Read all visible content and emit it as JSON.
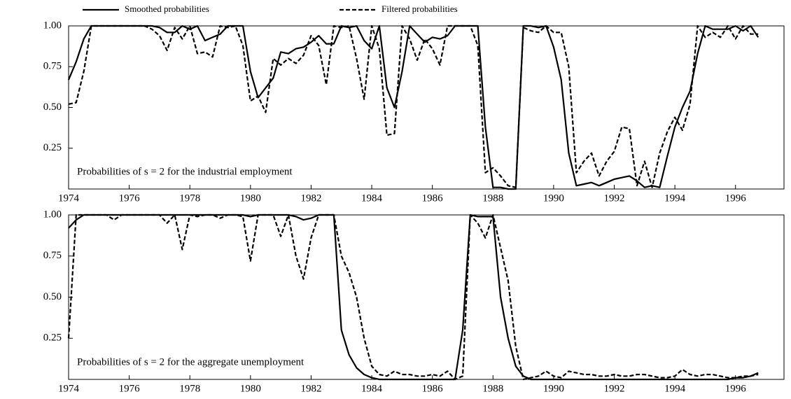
{
  "chart_data": [
    {
      "type": "line",
      "annotation": "Probabilities of s = 2 for the industrial employment",
      "x": [
        1974,
        1974.25,
        1974.5,
        1974.75,
        1975,
        1975.25,
        1975.5,
        1975.75,
        1976,
        1976.25,
        1976.5,
        1976.75,
        1977,
        1977.25,
        1977.5,
        1977.75,
        1978,
        1978.25,
        1978.5,
        1978.75,
        1979,
        1979.25,
        1979.5,
        1979.75,
        1980,
        1980.25,
        1980.5,
        1980.75,
        1981,
        1981.25,
        1981.5,
        1981.75,
        1982,
        1982.25,
        1982.5,
        1982.75,
        1983,
        1983.25,
        1983.5,
        1983.75,
        1984,
        1984.25,
        1984.5,
        1984.75,
        1985,
        1985.25,
        1985.5,
        1985.75,
        1986,
        1986.25,
        1986.5,
        1986.75,
        1987,
        1987.25,
        1987.5,
        1987.75,
        1988,
        1988.25,
        1988.5,
        1988.75,
        1989,
        1989.25,
        1989.5,
        1989.75,
        1990,
        1990.25,
        1990.5,
        1990.75,
        1991,
        1991.25,
        1991.5,
        1991.75,
        1992,
        1992.25,
        1992.5,
        1992.75,
        1993,
        1993.25,
        1993.5,
        1993.75,
        1994,
        1994.25,
        1994.5,
        1994.75,
        1995,
        1995.25,
        1995.5,
        1995.75,
        1996,
        1996.25,
        1996.5,
        1996.75
      ],
      "series": [
        {
          "name": "Smoothed probabilities",
          "color": "#000000",
          "dash": "solid",
          "values": [
            0.67,
            0.78,
            0.92,
            1.0,
            1,
            1,
            1,
            1,
            1,
            1,
            1,
            1,
            0.99,
            0.96,
            0.96,
            1.0,
            0.98,
            1.0,
            0.91,
            0.93,
            0.95,
            1.0,
            1.0,
            1.0,
            0.72,
            0.56,
            0.62,
            0.68,
            0.84,
            0.83,
            0.86,
            0.87,
            0.9,
            0.94,
            0.89,
            0.89,
            1.0,
            0.99,
            1.0,
            0.91,
            0.86,
            1.0,
            0.62,
            0.5,
            0.72,
            1.0,
            0.95,
            0.9,
            0.93,
            0.92,
            0.94,
            1.0,
            1.0,
            1.0,
            1.0,
            0.38,
            0.01,
            0.01,
            0.0,
            0.0,
            1.0,
            1.0,
            0.99,
            1.0,
            0.87,
            0.67,
            0.22,
            0.02,
            0.03,
            0.04,
            0.02,
            0.04,
            0.06,
            0.07,
            0.08,
            0.05,
            0.01,
            0.02,
            0.01,
            0.2,
            0.38,
            0.5,
            0.6,
            0.83,
            1.0,
            0.98,
            0.98,
            0.98,
            1.0,
            0.97,
            1.0,
            0.93
          ]
        },
        {
          "name": "Filtered probabilities",
          "color": "#000000",
          "dash": "dashed",
          "values": [
            0.52,
            0.53,
            0.72,
            1.0,
            1,
            1,
            1,
            1,
            1,
            1,
            1,
            0.98,
            0.94,
            0.85,
            0.99,
            0.92,
            1.0,
            0.83,
            0.84,
            0.81,
            1.0,
            0.99,
            1.0,
            0.88,
            0.54,
            0.57,
            0.47,
            0.8,
            0.76,
            0.8,
            0.77,
            0.82,
            0.94,
            0.88,
            0.64,
            1.0,
            0.99,
            1.0,
            0.8,
            0.55,
            1.0,
            0.86,
            0.33,
            0.34,
            1.0,
            0.92,
            0.79,
            0.92,
            0.86,
            0.76,
            1.0,
            1.0,
            1.0,
            1.0,
            0.88,
            0.1,
            0.13,
            0.08,
            0.02,
            0.01,
            0.99,
            0.97,
            0.96,
            1.0,
            0.96,
            0.96,
            0.75,
            0.1,
            0.17,
            0.22,
            0.08,
            0.17,
            0.23,
            0.38,
            0.37,
            0.02,
            0.17,
            0.01,
            0.22,
            0.35,
            0.44,
            0.36,
            0.52,
            1.0,
            0.93,
            0.96,
            0.93,
            1.0,
            0.92,
            1.0,
            0.95,
            0.95
          ]
        }
      ],
      "xlim": [
        1974,
        1997.6
      ],
      "ylim": [
        0,
        1
      ],
      "xticks": [
        1974,
        1976,
        1978,
        1980,
        1982,
        1984,
        1986,
        1988,
        1990,
        1992,
        1994,
        1996
      ],
      "yticks": [
        {
          "value": 0.25,
          "label": "0.25"
        },
        {
          "value": 0.5,
          "label": "0.50"
        },
        {
          "value": 0.75,
          "label": "0.75"
        },
        {
          "value": 1,
          "label": "1.00"
        }
      ]
    },
    {
      "type": "line",
      "annotation": "Probabilities of s = 2 for the aggregate unemployment",
      "x": [
        1974,
        1974.25,
        1974.5,
        1974.75,
        1975,
        1975.25,
        1975.5,
        1975.75,
        1976,
        1976.25,
        1976.5,
        1976.75,
        1977,
        1977.25,
        1977.5,
        1977.75,
        1978,
        1978.25,
        1978.5,
        1978.75,
        1979,
        1979.25,
        1979.5,
        1979.75,
        1980,
        1980.25,
        1980.5,
        1980.75,
        1981,
        1981.25,
        1981.5,
        1981.75,
        1982,
        1982.25,
        1982.5,
        1982.75,
        1983,
        1983.25,
        1983.5,
        1983.75,
        1984,
        1984.25,
        1984.5,
        1984.75,
        1985,
        1985.25,
        1985.5,
        1985.75,
        1986,
        1986.25,
        1986.5,
        1986.75,
        1987,
        1987.25,
        1987.5,
        1987.75,
        1988,
        1988.25,
        1988.5,
        1988.75,
        1989,
        1989.25,
        1989.5,
        1989.75,
        1990,
        1990.25,
        1990.5,
        1990.75,
        1991,
        1991.25,
        1991.5,
        1991.75,
        1992,
        1992.25,
        1992.5,
        1992.75,
        1993,
        1993.25,
        1993.5,
        1993.75,
        1994,
        1994.25,
        1994.5,
        1994.75,
        1995,
        1995.25,
        1995.5,
        1995.75,
        1996,
        1996.25,
        1996.5,
        1996.75
      ],
      "series": [
        {
          "color": "#000000",
          "dash": "solid",
          "values": [
            0.92,
            0.97,
            1.0,
            1.0,
            1,
            1,
            1,
            1,
            1,
            1,
            1,
            1,
            1,
            1,
            1,
            1,
            1,
            1,
            1,
            1,
            1,
            1,
            1,
            1,
            0.99,
            1.0,
            1.0,
            1.0,
            1.0,
            1.0,
            0.99,
            0.97,
            0.98,
            1.0,
            1.0,
            1.0,
            0.3,
            0.15,
            0.07,
            0.03,
            0.01,
            0,
            0,
            0,
            0,
            0,
            0,
            0,
            0,
            0,
            0,
            0,
            0.3,
            1.0,
            0.99,
            0.99,
            0.99,
            0.5,
            0.25,
            0.08,
            0.02,
            0,
            0,
            0,
            0,
            0,
            0,
            0,
            0,
            0,
            0,
            0,
            0,
            0,
            0,
            0,
            0,
            0,
            0,
            0,
            0,
            0,
            0,
            0,
            0,
            0,
            0,
            0,
            0.01,
            0.01,
            0.02,
            0.04
          ]
        },
        {
          "color": "#000000",
          "dash": "dashed",
          "values": [
            0.25,
            1.0,
            1.0,
            1.0,
            1.0,
            1.0,
            0.97,
            1.0,
            1,
            1,
            1,
            1,
            1.0,
            0.95,
            1.0,
            0.79,
            1.0,
            0.99,
            1.0,
            1.0,
            0.98,
            1.0,
            1.0,
            0.99,
            0.72,
            1.0,
            1.0,
            1.0,
            0.87,
            1.0,
            0.75,
            0.61,
            0.86,
            1.0,
            1.0,
            1.0,
            0.75,
            0.65,
            0.5,
            0.25,
            0.08,
            0.03,
            0.02,
            0.05,
            0.03,
            0.03,
            0.02,
            0.02,
            0.03,
            0.02,
            0.05,
            0.0,
            0.02,
            1.0,
            0.95,
            0.86,
            1.0,
            0.8,
            0.6,
            0.2,
            0.0,
            0.01,
            0.02,
            0.05,
            0.02,
            0.01,
            0.05,
            0.04,
            0.03,
            0.03,
            0.02,
            0.02,
            0.03,
            0.02,
            0.02,
            0.03,
            0.03,
            0.02,
            0.01,
            0.01,
            0.02,
            0.06,
            0.03,
            0.02,
            0.03,
            0.03,
            0.02,
            0.01,
            0.01,
            0.02,
            0.02,
            0.03
          ]
        }
      ],
      "xlim": [
        1974,
        1997.6
      ],
      "ylim": [
        0,
        1
      ],
      "xticks": [
        1974,
        1976,
        1978,
        1980,
        1982,
        1984,
        1986,
        1988,
        1990,
        1992,
        1994,
        1996
      ],
      "yticks": [
        {
          "value": 0.25,
          "label": "0.25"
        },
        {
          "value": 0.5,
          "label": "0.50"
        },
        {
          "value": 0.75,
          "label": "0.75"
        },
        {
          "value": 1,
          "label": "1.00"
        }
      ]
    }
  ]
}
